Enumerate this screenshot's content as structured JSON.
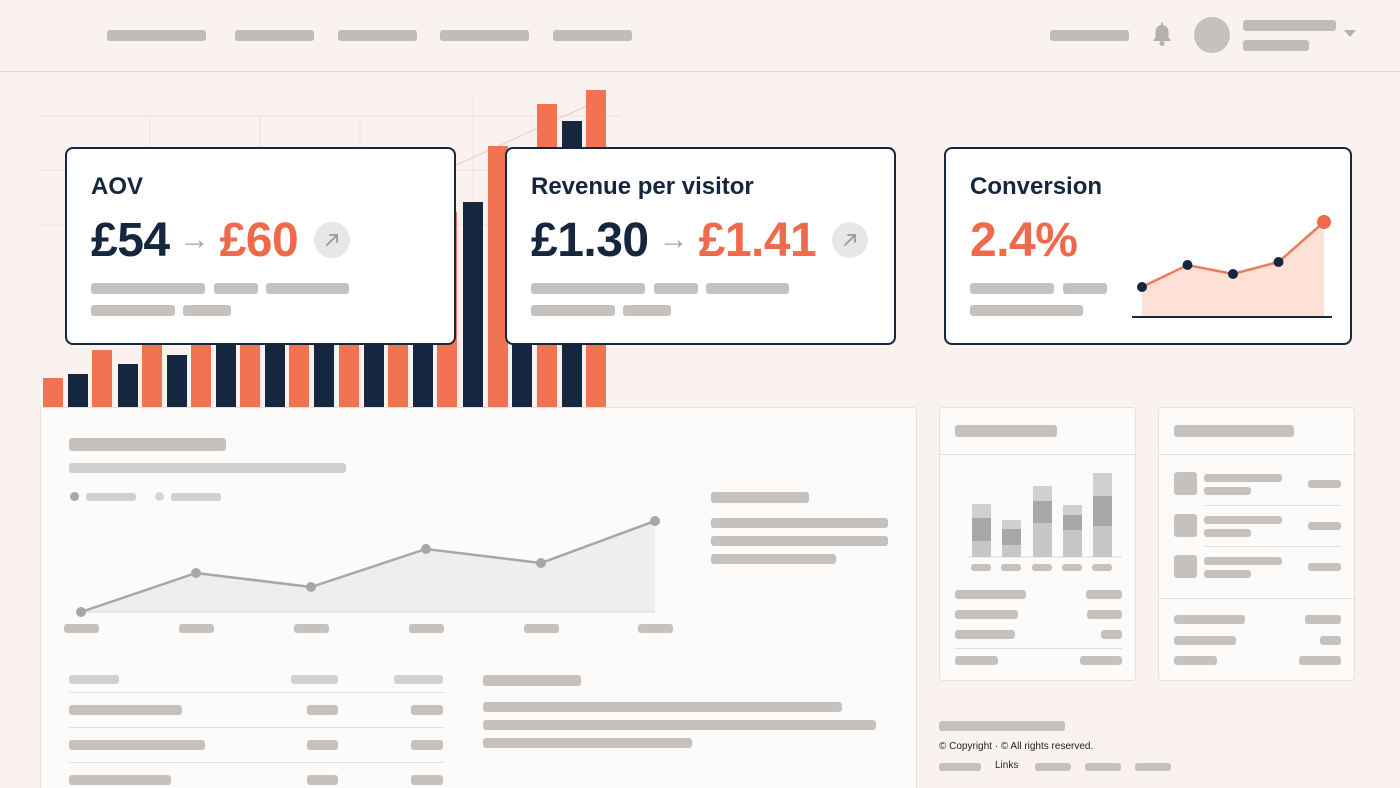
{
  "kpis": {
    "aov": {
      "title": "AOV",
      "old": "£54",
      "arrow": "→",
      "new": "£60"
    },
    "rpv": {
      "title": "Revenue per visitor",
      "old": "£1.30",
      "arrow": "→",
      "new": "£1.41"
    },
    "conversion": {
      "title": "Conversion",
      "value": "2.4%",
      "trend_points": [
        0.3,
        0.52,
        0.43,
        0.55,
        0.95
      ]
    }
  },
  "footer": {
    "copyright": "© Copyright · © All rights reserved.",
    "links_label": "Links"
  },
  "icons": {
    "notifications": "bell-icon",
    "trend": "arrow-up-right-icon",
    "profile": "avatar",
    "menu": "chevron-down-icon"
  },
  "colors": {
    "navy": "#15263f",
    "coral": "#ee6a4b",
    "background": "#f9f2ee",
    "placeholder": "#c4c1bf"
  }
}
